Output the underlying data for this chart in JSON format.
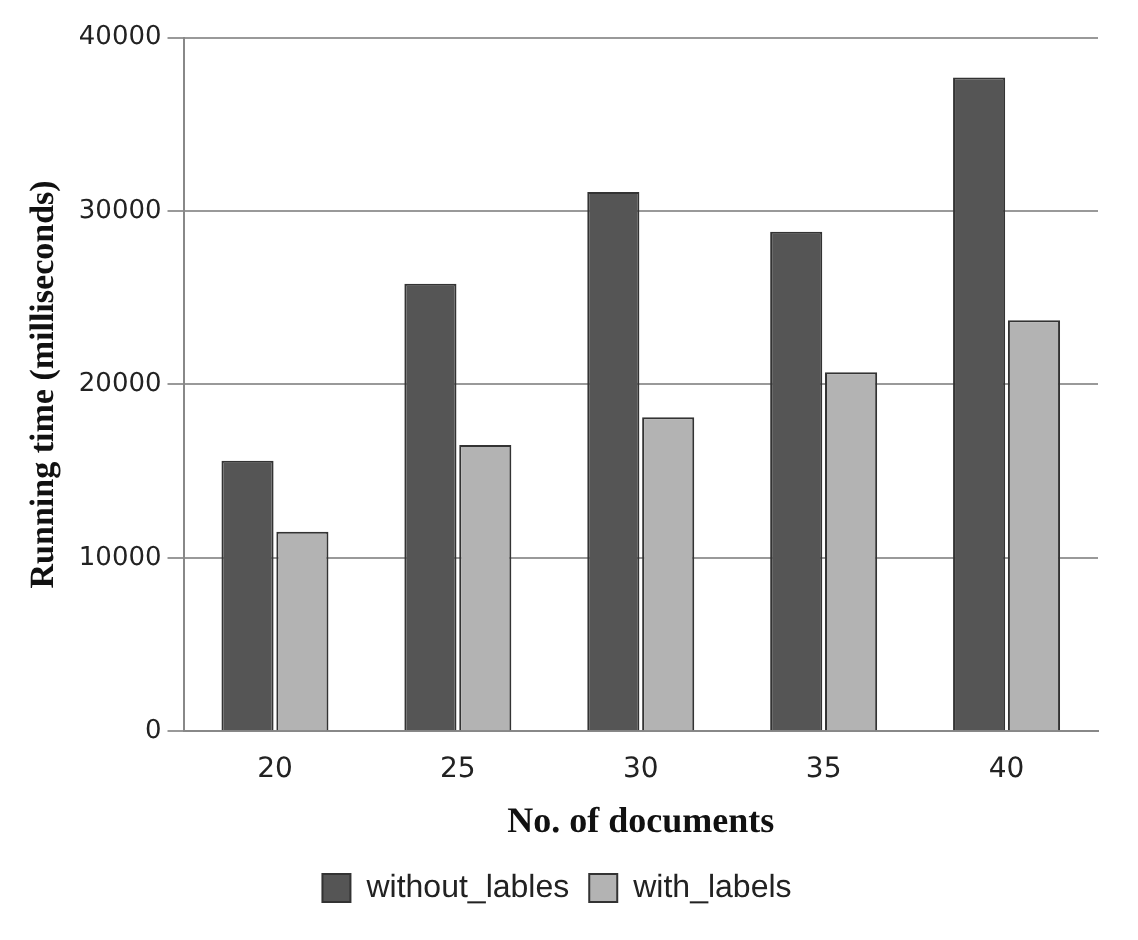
{
  "chart_data": {
    "type": "bar",
    "xlabel": "No. of documents",
    "ylabel": "Running time (milliseconds)",
    "categories": [
      "20",
      "25",
      "30",
      "35",
      "40"
    ],
    "series": [
      {
        "name": "without_lables",
        "color": "#555555",
        "values": [
          15600,
          25800,
          31100,
          28800,
          37700
        ]
      },
      {
        "name": "with_labels",
        "color": "#b3b3b3",
        "values": [
          11500,
          16500,
          18100,
          20700,
          23700
        ]
      }
    ],
    "ylim": [
      0,
      40000
    ],
    "yticks": [
      0,
      10000,
      20000,
      30000,
      40000
    ],
    "grid": "y",
    "legend": "bottom"
  }
}
